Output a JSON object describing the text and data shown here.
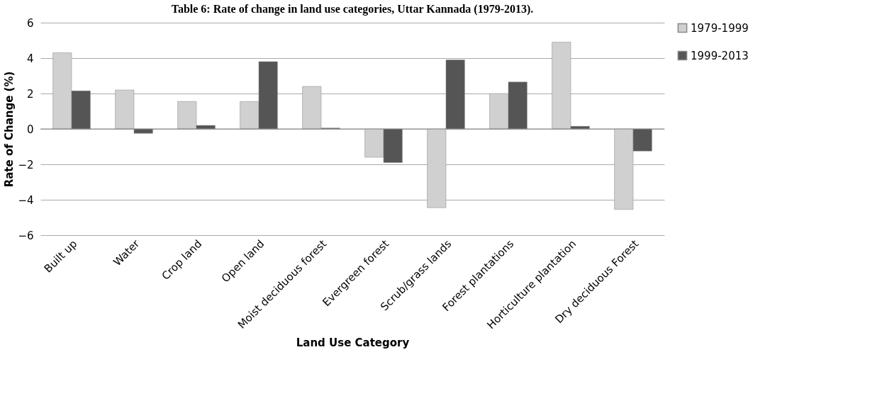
{
  "chart_data": {
    "type": "bar",
    "title": "Table 6: Rate of change in land use categories, Uttar Kannada (1979-2013).",
    "xlabel": "Land Use Category",
    "ylabel": "Rate of Change (%)",
    "categories": [
      "Built up",
      "Water",
      "Crop land",
      "Open land",
      "Moist deciduous forest",
      "Evergreen forest",
      "Scrub/grass lands",
      "Forest plantations",
      "Horticulture plantation",
      "Dry deciduous Forest"
    ],
    "series": [
      {
        "name": "1979-1999",
        "color": "#d0d0d0",
        "values": [
          4.3,
          2.2,
          1.55,
          1.55,
          2.4,
          -1.6,
          -4.45,
          2.0,
          4.9,
          -4.55
        ]
      },
      {
        "name": "1999-2013",
        "color": "#555555",
        "values": [
          2.15,
          -0.25,
          0.2,
          3.8,
          0.05,
          -1.9,
          3.9,
          2.65,
          0.15,
          -1.25
        ]
      }
    ],
    "ylim": [
      -6,
      6
    ],
    "yticks": [
      -6,
      -4,
      -2,
      0,
      2,
      4,
      6
    ],
    "grid": "y",
    "legend": "right"
  }
}
